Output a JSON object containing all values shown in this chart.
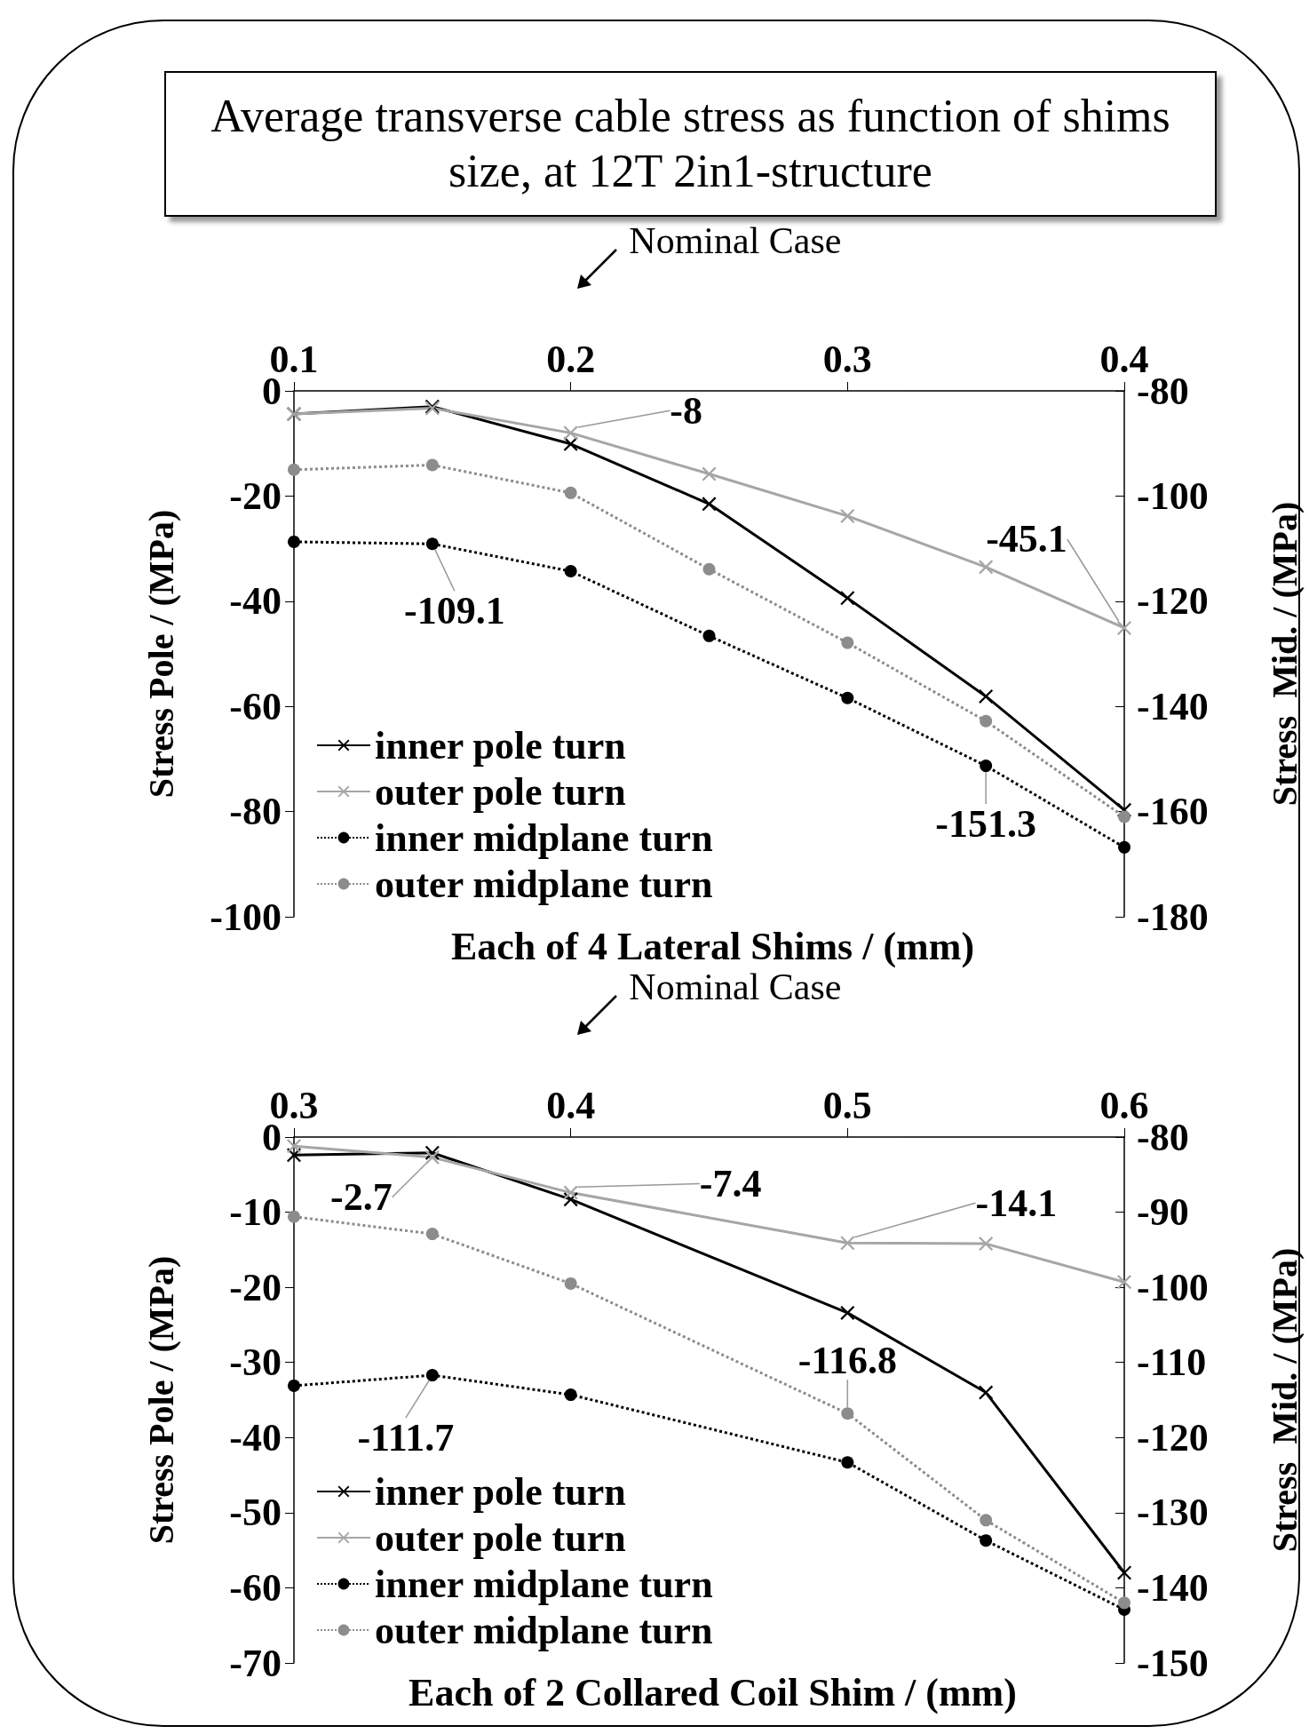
{
  "chart_data": [
    {
      "type": "line",
      "title": "Average transverse cable stress as function of shims size, at 12T 2in1-structure",
      "xlabel": "Each of 4 Lateral Shims / (mm)",
      "ylabel": "Stress Pole / (MPa)",
      "y2label": "Stress  Mid. / (MPa)",
      "annotations": [
        "Nominal Case"
      ],
      "x": [
        0.1,
        0.15,
        0.2,
        0.25,
        0.3,
        0.35,
        0.4
      ],
      "xlim": [
        0.1,
        0.4
      ],
      "xticks": [
        0.1,
        0.2,
        0.3,
        0.4
      ],
      "ylim": [
        -100,
        0
      ],
      "yticks": [
        0,
        -20,
        -40,
        -60,
        -80,
        -100
      ],
      "y2lim": [
        -180,
        -80
      ],
      "y2ticks": [
        -80,
        -100,
        -120,
        -140,
        -160,
        -180
      ],
      "grid": false,
      "legend": "bottom left",
      "series": [
        {
          "name": "inner pole turn",
          "color": "#000000",
          "marker": "cross",
          "line_style": "solid",
          "values": [
            -4.4,
            -3.0,
            -10.1,
            -21.5,
            -39.4,
            -58.1,
            -79.7
          ]
        },
        {
          "name": "outer pole turn",
          "color": "#a6a6a6",
          "marker": "cross",
          "line_style": "solid",
          "values": [
            -4.4,
            -3.3,
            -8,
            -15.8,
            -23.8,
            -33.5,
            -45.1
          ],
          "value_labels": [
            null,
            null,
            "-8",
            null,
            null,
            null,
            "-45.1"
          ]
        },
        {
          "name": "inner midplane turn",
          "color": "#000000",
          "marker": "circle",
          "line_style": "dotted",
          "axis": "y2",
          "values": [
            -108.7,
            -109.1,
            -114.3,
            -126.6,
            -138.4,
            -151.3,
            -166.8
          ],
          "value_labels": [
            null,
            "-109.1",
            null,
            null,
            null,
            "-151.3",
            null
          ]
        },
        {
          "name": "outer midplane turn",
          "color": "#8c8c8c",
          "marker": "circle",
          "line_style": "dotted",
          "axis": "y2",
          "values": [
            -95.0,
            -94.1,
            -99.4,
            -113.9,
            -127.9,
            -142.8,
            -161.0
          ]
        }
      ]
    },
    {
      "type": "line",
      "xlabel": "Each of 2 Collared Coil Shim / (mm)",
      "ylabel": "Stress Pole / (MPa)",
      "y2label": "Stress  Mid. / (MPa)",
      "annotations": [
        "Nominal Case"
      ],
      "x": [
        0.3,
        0.35,
        0.4,
        0.5,
        0.55,
        0.6
      ],
      "xlim": [
        0.3,
        0.6
      ],
      "xticks": [
        0.3,
        0.4,
        0.5,
        0.6
      ],
      "ylim": [
        -70,
        0
      ],
      "yticks": [
        0,
        -10,
        -20,
        -30,
        -40,
        -50,
        -60,
        -70
      ],
      "y2lim": [
        -150,
        -80
      ],
      "y2ticks": [
        -80,
        -90,
        -100,
        -110,
        -120,
        -130,
        -140,
        -150
      ],
      "grid": false,
      "legend": "bottom left",
      "series": [
        {
          "name": "inner pole turn",
          "color": "#000000",
          "marker": "cross",
          "line_style": "solid",
          "values": [
            -2.4,
            -2.1,
            -8.3,
            -23.4,
            -34.0,
            -58.0
          ]
        },
        {
          "name": "outer pole turn",
          "color": "#a6a6a6",
          "marker": "cross",
          "line_style": "solid",
          "values": [
            -1.2,
            -2.7,
            -7.4,
            -14.1,
            -14.2,
            -19.3
          ],
          "value_labels": [
            null,
            "-2.7",
            "-7.4",
            "-14.1",
            null,
            null
          ]
        },
        {
          "name": "inner midplane turn",
          "color": "#000000",
          "marker": "circle",
          "line_style": "dotted",
          "axis": "y2",
          "values": [
            -113.1,
            -111.7,
            -114.3,
            -123.3,
            -133.7,
            -142.9
          ],
          "value_labels": [
            null,
            "-111.7",
            null,
            null,
            null,
            null
          ]
        },
        {
          "name": "outer midplane turn",
          "color": "#8c8c8c",
          "marker": "circle",
          "line_style": "dotted",
          "axis": "y2",
          "values": [
            -90.6,
            -92.9,
            -99.5,
            -116.8,
            -131.0,
            -142.0
          ],
          "value_labels": [
            null,
            null,
            null,
            "-116.8",
            null,
            null
          ]
        }
      ]
    }
  ]
}
